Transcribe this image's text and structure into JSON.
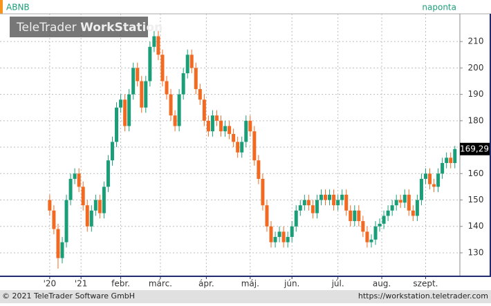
{
  "chart_data": {
    "type": "candlestick",
    "symbol": "ABNB",
    "period": "naponta",
    "watermark": {
      "brand": "TeleTrader",
      "product": "WorkStation"
    },
    "footer_left": "© 2021 TeleTrader Software GmbH",
    "footer_right": "https://workstation.teletrader.com",
    "last_label": {
      "value": 169.29,
      "label": "169,29"
    },
    "up_color": "#1a9e78",
    "down_color": "#f26a21",
    "grid": true,
    "xlim": [
      -23.8,
      196.4
    ],
    "ylim": [
      121.1,
      220.5
    ],
    "yticks": [
      130,
      140,
      150,
      160,
      170,
      180,
      190,
      200,
      210
    ],
    "xticks": [
      {
        "value": 0,
        "label": "'20"
      },
      {
        "value": 15,
        "label": "'21"
      },
      {
        "value": 34,
        "label": "febr."
      },
      {
        "value": 53,
        "label": "márc."
      },
      {
        "value": 75,
        "label": "ápr."
      },
      {
        "value": 96,
        "label": "máj."
      },
      {
        "value": 116,
        "label": "jún."
      },
      {
        "value": 138,
        "label": "júl."
      },
      {
        "value": 159,
        "label": "aug."
      },
      {
        "value": 180,
        "label": "szept."
      }
    ],
    "series": [
      {
        "name": "ABNB",
        "x": [
          0,
          2,
          4,
          6,
          8,
          10,
          12,
          14,
          16,
          18,
          20,
          22,
          24,
          26,
          28,
          30,
          32,
          34,
          36,
          38,
          40,
          42,
          44,
          46,
          48,
          50,
          52,
          54,
          56,
          58,
          60,
          62,
          64,
          66,
          68,
          70,
          72,
          74,
          76,
          78,
          80,
          82,
          84,
          86,
          88,
          90,
          92,
          94,
          96,
          98,
          100,
          102,
          104,
          106,
          108,
          110,
          112,
          114,
          116,
          118,
          120,
          122,
          124,
          126,
          128,
          130,
          132,
          134,
          136,
          138,
          140,
          142,
          144,
          146,
          148,
          150,
          152,
          154,
          156,
          158,
          160,
          162,
          164,
          166,
          168,
          170,
          172,
          174,
          176,
          178,
          180,
          182,
          184,
          186,
          188,
          190,
          192,
          194
        ],
        "open": [
          150,
          146,
          139,
          128,
          134,
          150,
          158,
          160,
          155,
          148,
          140,
          146,
          150,
          145,
          155,
          165,
          172,
          185,
          188,
          178,
          190,
          200,
          195,
          185,
          195,
          208,
          212,
          205,
          195,
          190,
          182,
          178,
          190,
          198,
          205,
          200,
          192,
          188,
          180,
          176,
          182,
          180,
          176,
          178,
          175,
          172,
          168,
          172,
          180,
          176,
          165,
          158,
          148,
          140,
          134,
          136,
          138,
          134,
          136,
          140,
          146,
          148,
          150,
          148,
          145,
          150,
          152,
          150,
          152,
          148,
          150,
          152,
          146,
          142,
          146,
          142,
          138,
          134,
          135,
          140,
          141,
          144,
          146,
          148,
          150,
          149,
          152,
          146,
          144,
          150,
          158,
          160,
          156,
          155,
          160,
          164,
          166,
          164
        ],
        "high": [
          152,
          148,
          141,
          136,
          152,
          160,
          162,
          162,
          157,
          150,
          148,
          152,
          152,
          157,
          167,
          174,
          187,
          190,
          190,
          192,
          202,
          202,
          197,
          197,
          210,
          214,
          214,
          207,
          197,
          192,
          184,
          192,
          200,
          207,
          207,
          202,
          194,
          190,
          182,
          184,
          184,
          182,
          180,
          180,
          177,
          174,
          174,
          182,
          182,
          178,
          167,
          160,
          150,
          142,
          138,
          140,
          140,
          138,
          142,
          148,
          150,
          152,
          152,
          150,
          152,
          154,
          154,
          154,
          154,
          152,
          154,
          154,
          148,
          148,
          148,
          144,
          140,
          137,
          142,
          143,
          146,
          148,
          150,
          152,
          152,
          154,
          154,
          148,
          152,
          160,
          162,
          162,
          158,
          162,
          166,
          168,
          168,
          170.5
        ],
        "low": [
          144,
          137,
          124,
          126,
          132,
          148,
          156,
          153,
          146,
          138,
          138,
          144,
          143,
          143,
          153,
          163,
          170,
          183,
          176,
          176,
          188,
          193,
          183,
          183,
          193,
          206,
          203,
          193,
          188,
          180,
          176,
          176,
          188,
          196,
          198,
          190,
          186,
          178,
          174,
          174,
          178,
          174,
          174,
          173,
          170,
          166,
          166,
          170,
          174,
          163,
          156,
          146,
          138,
          132,
          132,
          134,
          132,
          132,
          134,
          138,
          144,
          146,
          146,
          143,
          143,
          148,
          148,
          148,
          146,
          146,
          148,
          144,
          140,
          140,
          140,
          136,
          132,
          132,
          133,
          138,
          139,
          142,
          144,
          146,
          147,
          147,
          144,
          142,
          142,
          148,
          156,
          154,
          153,
          153,
          158,
          162,
          162,
          162
        ],
        "close": [
          146,
          139,
          128,
          134,
          150,
          158,
          160,
          155,
          148,
          140,
          146,
          150,
          145,
          155,
          165,
          172,
          185,
          188,
          178,
          190,
          200,
          195,
          185,
          195,
          208,
          212,
          205,
          195,
          190,
          182,
          178,
          190,
          198,
          205,
          200,
          192,
          188,
          180,
          176,
          182,
          180,
          176,
          178,
          175,
          172,
          168,
          172,
          180,
          176,
          165,
          158,
          148,
          140,
          134,
          136,
          138,
          134,
          136,
          140,
          146,
          148,
          150,
          148,
          145,
          150,
          152,
          150,
          152,
          148,
          150,
          152,
          146,
          142,
          146,
          142,
          138,
          134,
          135,
          140,
          141,
          144,
          146,
          148,
          150,
          149,
          152,
          146,
          144,
          150,
          158,
          160,
          156,
          155,
          160,
          164,
          166,
          164,
          169.29
        ]
      }
    ]
  }
}
